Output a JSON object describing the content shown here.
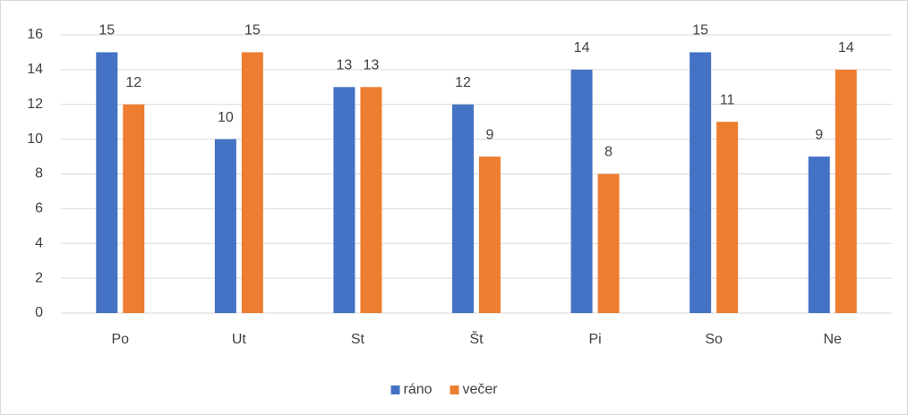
{
  "chart_data": {
    "type": "bar",
    "categories": [
      "Po",
      "Ut",
      "St",
      "Št",
      "Pi",
      "So",
      "Ne"
    ],
    "series": [
      {
        "name": "ráno",
        "color": "#4472c4",
        "values": [
          15,
          10,
          13,
          12,
          14,
          15,
          9
        ]
      },
      {
        "name": "večer",
        "color": "#ed7d31",
        "values": [
          12,
          15,
          13,
          9,
          8,
          11,
          14
        ]
      }
    ],
    "ylim": [
      0,
      16
    ],
    "yticks": [
      0,
      2,
      4,
      6,
      8,
      10,
      12,
      14,
      16
    ],
    "grid": true,
    "legend": "bottom",
    "data_labels": true
  }
}
